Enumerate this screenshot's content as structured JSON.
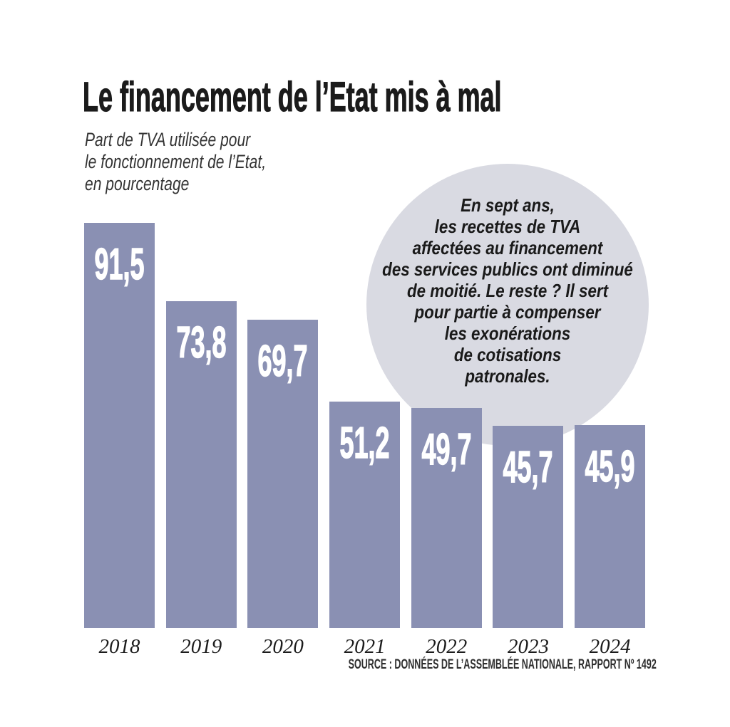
{
  "chart_data": {
    "type": "bar",
    "title": "Le financement de l’Etat mis à mal",
    "subtitle": "Part de TVA utilisée pour\nle fonctionnement de l’Etat,\nen pourcentage",
    "categories": [
      "2018",
      "2019",
      "2020",
      "2021",
      "2022",
      "2023",
      "2024"
    ],
    "values": [
      91.5,
      73.8,
      69.7,
      51.2,
      49.7,
      45.7,
      45.9
    ],
    "value_labels": [
      "91,5",
      "73,8",
      "69,7",
      "51,2",
      "49,7",
      "45,7",
      "45,9"
    ],
    "unit": "percent",
    "ylim": [
      0,
      100
    ],
    "grid": false,
    "legend": false,
    "annotation": "En sept ans,\nles recettes de TVA\naffectées au financement\ndes services publics ont diminué\nde moitié. Le reste ? Il sert\npour partie à compenser\nles exonérations\nde cotisations\npatronales.",
    "source": "SOURCE : DONNÉES DE L’ASSEMBLÉE NATIONALE, RAPPORT Nº 1492",
    "colors": {
      "bar": "#8a90b3",
      "bubble": "#d9dae2",
      "value_label": "#ffffff",
      "text": "#1a1a1a"
    }
  }
}
